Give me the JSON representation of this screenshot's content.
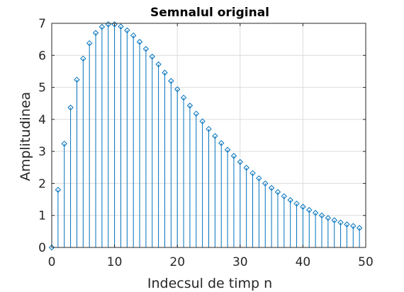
{
  "chart_data": {
    "type": "stem",
    "title": "Semnalul original",
    "xlabel": "Indecsul de timp n",
    "ylabel": "Amplitudinea",
    "xlim": [
      0,
      50
    ],
    "ylim": [
      0,
      7
    ],
    "xticks": [
      "0",
      "10",
      "20",
      "30",
      "40",
      "50"
    ],
    "yticks": [
      "0",
      "1",
      "2",
      "3",
      "4",
      "5",
      "6",
      "7"
    ],
    "grid": true,
    "marker": "diamond",
    "series_color": "#0072BD",
    "grid_color": "#DCDCDC",
    "x": [
      0,
      1,
      2,
      3,
      4,
      5,
      6,
      7,
      8,
      9,
      10,
      11,
      12,
      13,
      14,
      15,
      16,
      17,
      18,
      19,
      20,
      21,
      22,
      23,
      24,
      25,
      26,
      27,
      28,
      29,
      30,
      31,
      32,
      33,
      34,
      35,
      36,
      37,
      38,
      39,
      40,
      41,
      42,
      43,
      44,
      45,
      46,
      47,
      48,
      49
    ],
    "values": [
      0.0,
      1.8,
      3.24,
      4.37,
      5.24,
      5.9,
      6.38,
      6.7,
      6.89,
      6.97,
      6.97,
      6.9,
      6.78,
      6.62,
      6.42,
      6.2,
      5.96,
      5.72,
      5.46,
      5.2,
      4.94,
      4.68,
      4.43,
      4.18,
      3.94,
      3.7,
      3.48,
      3.26,
      3.05,
      2.86,
      2.67,
      2.49,
      2.32,
      2.16,
      2.0,
      1.86,
      1.73,
      1.6,
      1.48,
      1.37,
      1.27,
      1.17,
      1.08,
      1.0,
      0.92,
      0.85,
      0.78,
      0.72,
      0.67,
      0.61
    ]
  }
}
